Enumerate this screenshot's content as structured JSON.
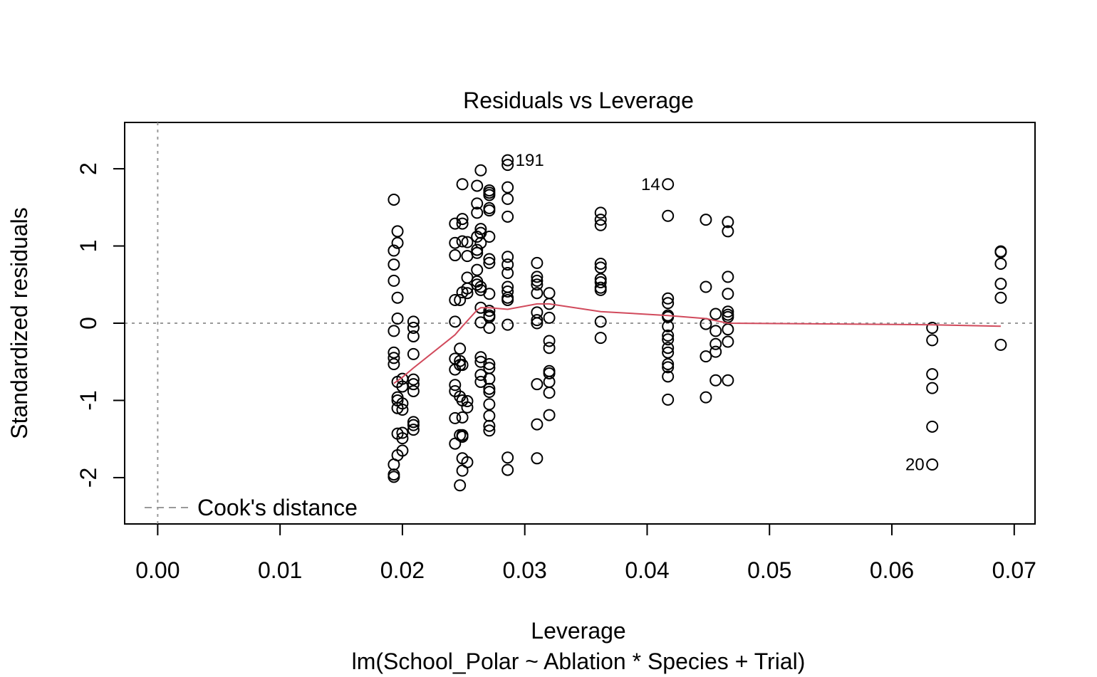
{
  "chart_data": {
    "type": "scatter",
    "title": "Residuals vs Leverage",
    "xlabel": "Leverage",
    "subtitle": "lm(School_Polar ~ Ablation * Species + Trial)",
    "ylabel": "Standardized residuals",
    "xlim": [
      -0.0027,
      0.0717
    ],
    "ylim": [
      -2.6,
      2.6
    ],
    "xticks": [
      0.0,
      0.01,
      0.02,
      0.03,
      0.04,
      0.05,
      0.06,
      0.07
    ],
    "xtick_labels": [
      "0.00",
      "0.01",
      "0.02",
      "0.03",
      "0.04",
      "0.05",
      "0.06",
      "0.07"
    ],
    "yticks": [
      -2,
      -1,
      0,
      1,
      2
    ],
    "ytick_labels": [
      "-2",
      "-1",
      "0",
      "1",
      "2"
    ],
    "legend": {
      "label": "Cook's distance",
      "placement": "bottom-left",
      "color": "#999999"
    },
    "reference_lines": {
      "h": 0,
      "v": 0,
      "color": "#999999"
    },
    "colors": {
      "points": "#000000",
      "smooth": "#D14A5C"
    },
    "points": [
      [
        0.0193,
        1.6
      ],
      [
        0.0193,
        0.94
      ],
      [
        0.0193,
        0.76
      ],
      [
        0.0193,
        0.55
      ],
      [
        0.0193,
        -0.1
      ],
      [
        0.0193,
        -0.38
      ],
      [
        0.0193,
        -0.45
      ],
      [
        0.0193,
        -0.53
      ],
      [
        0.0193,
        -1.83
      ],
      [
        0.0193,
        -1.96
      ],
      [
        0.0193,
        -1.99
      ],
      [
        0.0196,
        1.19
      ],
      [
        0.0196,
        1.04
      ],
      [
        0.0196,
        0.33
      ],
      [
        0.0196,
        0.06
      ],
      [
        0.0196,
        -0.76
      ],
      [
        0.0196,
        -0.96
      ],
      [
        0.0196,
        -1.0
      ],
      [
        0.0196,
        -1.1
      ],
      [
        0.0196,
        -1.43
      ],
      [
        0.0196,
        -1.71
      ],
      [
        0.02,
        -0.72
      ],
      [
        0.02,
        -0.82
      ],
      [
        0.02,
        -1.04
      ],
      [
        0.02,
        -1.12
      ],
      [
        0.02,
        -1.42
      ],
      [
        0.02,
        -1.49
      ],
      [
        0.02,
        -1.65
      ],
      [
        0.0209,
        0.02
      ],
      [
        0.0209,
        -0.06
      ],
      [
        0.0209,
        -0.17
      ],
      [
        0.0209,
        -0.4
      ],
      [
        0.0209,
        -0.73
      ],
      [
        0.0209,
        -0.79
      ],
      [
        0.0209,
        -0.88
      ],
      [
        0.0209,
        -1.28
      ],
      [
        0.0209,
        -1.32
      ],
      [
        0.0209,
        -1.38
      ],
      [
        0.0243,
        1.29
      ],
      [
        0.0243,
        1.04
      ],
      [
        0.0243,
        0.88
      ],
      [
        0.0243,
        0.3
      ],
      [
        0.0243,
        0.02
      ],
      [
        0.0243,
        -0.46
      ],
      [
        0.0243,
        -0.6
      ],
      [
        0.0243,
        -0.8
      ],
      [
        0.0243,
        -0.88
      ],
      [
        0.0243,
        -1.23
      ],
      [
        0.0243,
        -1.56
      ],
      [
        0.0247,
        -0.33
      ],
      [
        0.0247,
        -0.49
      ],
      [
        0.0247,
        -0.54
      ],
      [
        0.0247,
        -0.95
      ],
      [
        0.0247,
        -1.45
      ],
      [
        0.0247,
        -2.1
      ],
      [
        0.0247,
        0.3
      ],
      [
        0.0249,
        1.8
      ],
      [
        0.0249,
        1.35
      ],
      [
        0.0249,
        1.29
      ],
      [
        0.0249,
        1.06
      ],
      [
        0.0249,
        0.4
      ],
      [
        0.0249,
        -0.54
      ],
      [
        0.0249,
        -1.0
      ],
      [
        0.0249,
        -1.22
      ],
      [
        0.0249,
        -1.45
      ],
      [
        0.0249,
        -1.47
      ],
      [
        0.0249,
        -1.75
      ],
      [
        0.0249,
        -1.91
      ],
      [
        0.0253,
        1.05
      ],
      [
        0.0253,
        0.87
      ],
      [
        0.0253,
        0.59
      ],
      [
        0.0253,
        0.45
      ],
      [
        0.0253,
        0.39
      ],
      [
        0.0253,
        -1.01
      ],
      [
        0.0253,
        -1.09
      ],
      [
        0.0253,
        -1.8
      ],
      [
        0.0261,
        1.78
      ],
      [
        0.0261,
        1.55
      ],
      [
        0.0261,
        1.43
      ],
      [
        0.0261,
        1.12
      ],
      [
        0.0261,
        0.95
      ],
      [
        0.0261,
        0.91
      ],
      [
        0.0261,
        0.69
      ],
      [
        0.0261,
        0.5
      ],
      [
        0.0261,
        0.54
      ],
      [
        0.0264,
        1.98
      ],
      [
        0.0264,
        1.22
      ],
      [
        0.0264,
        1.17
      ],
      [
        0.0264,
        1.04
      ],
      [
        0.0264,
        0.47
      ],
      [
        0.0264,
        0.43
      ],
      [
        0.0264,
        0.2
      ],
      [
        0.0264,
        0.01
      ],
      [
        0.0264,
        -0.44
      ],
      [
        0.0264,
        -0.5
      ],
      [
        0.0264,
        -0.67
      ],
      [
        0.0264,
        -0.76
      ],
      [
        0.0271,
        1.72
      ],
      [
        0.0271,
        1.69
      ],
      [
        0.0271,
        1.66
      ],
      [
        0.0271,
        1.49
      ],
      [
        0.0271,
        1.46
      ],
      [
        0.0271,
        1.12
      ],
      [
        0.0271,
        0.83
      ],
      [
        0.0271,
        0.78
      ],
      [
        0.0271,
        0.38
      ],
      [
        0.0271,
        0.16
      ],
      [
        0.0271,
        0.1
      ],
      [
        0.0271,
        0.08
      ],
      [
        0.0271,
        -0.06
      ],
      [
        0.0271,
        -0.53
      ],
      [
        0.0271,
        -0.58
      ],
      [
        0.0271,
        -0.72
      ],
      [
        0.0271,
        -0.85
      ],
      [
        0.0271,
        -0.89
      ],
      [
        0.0271,
        -1.05
      ],
      [
        0.0271,
        -1.2
      ],
      [
        0.0271,
        -1.33
      ],
      [
        0.0271,
        -1.39
      ],
      [
        0.0286,
        2.11
      ],
      [
        0.0286,
        2.05
      ],
      [
        0.0286,
        1.76
      ],
      [
        0.0286,
        1.61
      ],
      [
        0.0286,
        1.38
      ],
      [
        0.0286,
        0.86
      ],
      [
        0.0286,
        0.76
      ],
      [
        0.0286,
        0.65
      ],
      [
        0.0286,
        0.47
      ],
      [
        0.0286,
        0.41
      ],
      [
        0.0286,
        0.33
      ],
      [
        0.0286,
        0.3
      ],
      [
        0.0286,
        -0.02
      ],
      [
        0.0286,
        -1.74
      ],
      [
        0.0286,
        -1.9
      ],
      [
        0.031,
        0.78
      ],
      [
        0.031,
        0.6
      ],
      [
        0.031,
        0.55
      ],
      [
        0.031,
        0.5
      ],
      [
        0.031,
        0.39
      ],
      [
        0.031,
        0.14
      ],
      [
        0.031,
        0.04
      ],
      [
        0.031,
        0.0
      ],
      [
        0.031,
        -0.79
      ],
      [
        0.031,
        -1.31
      ],
      [
        0.031,
        -1.75
      ],
      [
        0.032,
        0.39
      ],
      [
        0.032,
        0.25
      ],
      [
        0.032,
        0.07
      ],
      [
        0.032,
        -0.23
      ],
      [
        0.032,
        -0.32
      ],
      [
        0.032,
        -0.62
      ],
      [
        0.032,
        -0.65
      ],
      [
        0.032,
        -0.76
      ],
      [
        0.032,
        -0.9
      ],
      [
        0.032,
        -1.19
      ],
      [
        0.0362,
        1.43
      ],
      [
        0.0362,
        1.34
      ],
      [
        0.0362,
        1.27
      ],
      [
        0.0362,
        0.77
      ],
      [
        0.0362,
        0.72
      ],
      [
        0.0362,
        0.57
      ],
      [
        0.0362,
        0.53
      ],
      [
        0.0362,
        0.46
      ],
      [
        0.0362,
        0.43
      ],
      [
        0.0362,
        0.02
      ],
      [
        0.0362,
        -0.19
      ],
      [
        0.0417,
        1.8
      ],
      [
        0.0417,
        1.39
      ],
      [
        0.0417,
        0.32
      ],
      [
        0.0417,
        0.26
      ],
      [
        0.0417,
        0.1
      ],
      [
        0.0417,
        0.08
      ],
      [
        0.0417,
        -0.04
      ],
      [
        0.0417,
        -0.16
      ],
      [
        0.0417,
        -0.21
      ],
      [
        0.0417,
        -0.32
      ],
      [
        0.0417,
        -0.38
      ],
      [
        0.0417,
        -0.53
      ],
      [
        0.0417,
        -0.57
      ],
      [
        0.0417,
        -0.69
      ],
      [
        0.0417,
        -0.99
      ],
      [
        0.0448,
        1.34
      ],
      [
        0.0448,
        0.47
      ],
      [
        0.0448,
        -0.01
      ],
      [
        0.0448,
        -0.43
      ],
      [
        0.0448,
        -0.96
      ],
      [
        0.0456,
        0.12
      ],
      [
        0.0456,
        -0.1
      ],
      [
        0.0456,
        -0.27
      ],
      [
        0.0456,
        -0.37
      ],
      [
        0.0456,
        -0.74
      ],
      [
        0.0466,
        1.31
      ],
      [
        0.0466,
        1.19
      ],
      [
        0.0466,
        0.6
      ],
      [
        0.0466,
        0.38
      ],
      [
        0.0466,
        0.15
      ],
      [
        0.0466,
        0.11
      ],
      [
        0.0466,
        0.08
      ],
      [
        0.0466,
        -0.08
      ],
      [
        0.0466,
        -0.24
      ],
      [
        0.0466,
        -0.74
      ],
      [
        0.0633,
        -0.06
      ],
      [
        0.0633,
        -0.22
      ],
      [
        0.0633,
        -0.66
      ],
      [
        0.0633,
        -0.84
      ],
      [
        0.0633,
        -1.34
      ],
      [
        0.0633,
        -1.83
      ],
      [
        0.0689,
        0.92
      ],
      [
        0.0689,
        0.93
      ],
      [
        0.0689,
        0.77
      ],
      [
        0.0689,
        0.51
      ],
      [
        0.0689,
        0.33
      ],
      [
        0.0689,
        -0.28
      ]
    ],
    "smooth": [
      [
        0.0193,
        -0.78
      ],
      [
        0.02,
        -0.7
      ],
      [
        0.0209,
        -0.58
      ],
      [
        0.0243,
        -0.15
      ],
      [
        0.0249,
        -0.04
      ],
      [
        0.0261,
        0.17
      ],
      [
        0.0264,
        0.2
      ],
      [
        0.0271,
        0.2
      ],
      [
        0.0286,
        0.18
      ],
      [
        0.031,
        0.25
      ],
      [
        0.032,
        0.25
      ],
      [
        0.0362,
        0.15
      ],
      [
        0.0417,
        0.1
      ],
      [
        0.0448,
        0.06
      ],
      [
        0.0466,
        0.0
      ],
      [
        0.0633,
        -0.02
      ],
      [
        0.0689,
        -0.04
      ]
    ],
    "annotations": [
      {
        "label": "191",
        "x": 0.0286,
        "y": 2.11,
        "side": "right"
      },
      {
        "label": "14",
        "x": 0.0417,
        "y": 1.8,
        "side": "left"
      },
      {
        "label": "20",
        "x": 0.0633,
        "y": -1.83,
        "side": "left"
      }
    ]
  }
}
